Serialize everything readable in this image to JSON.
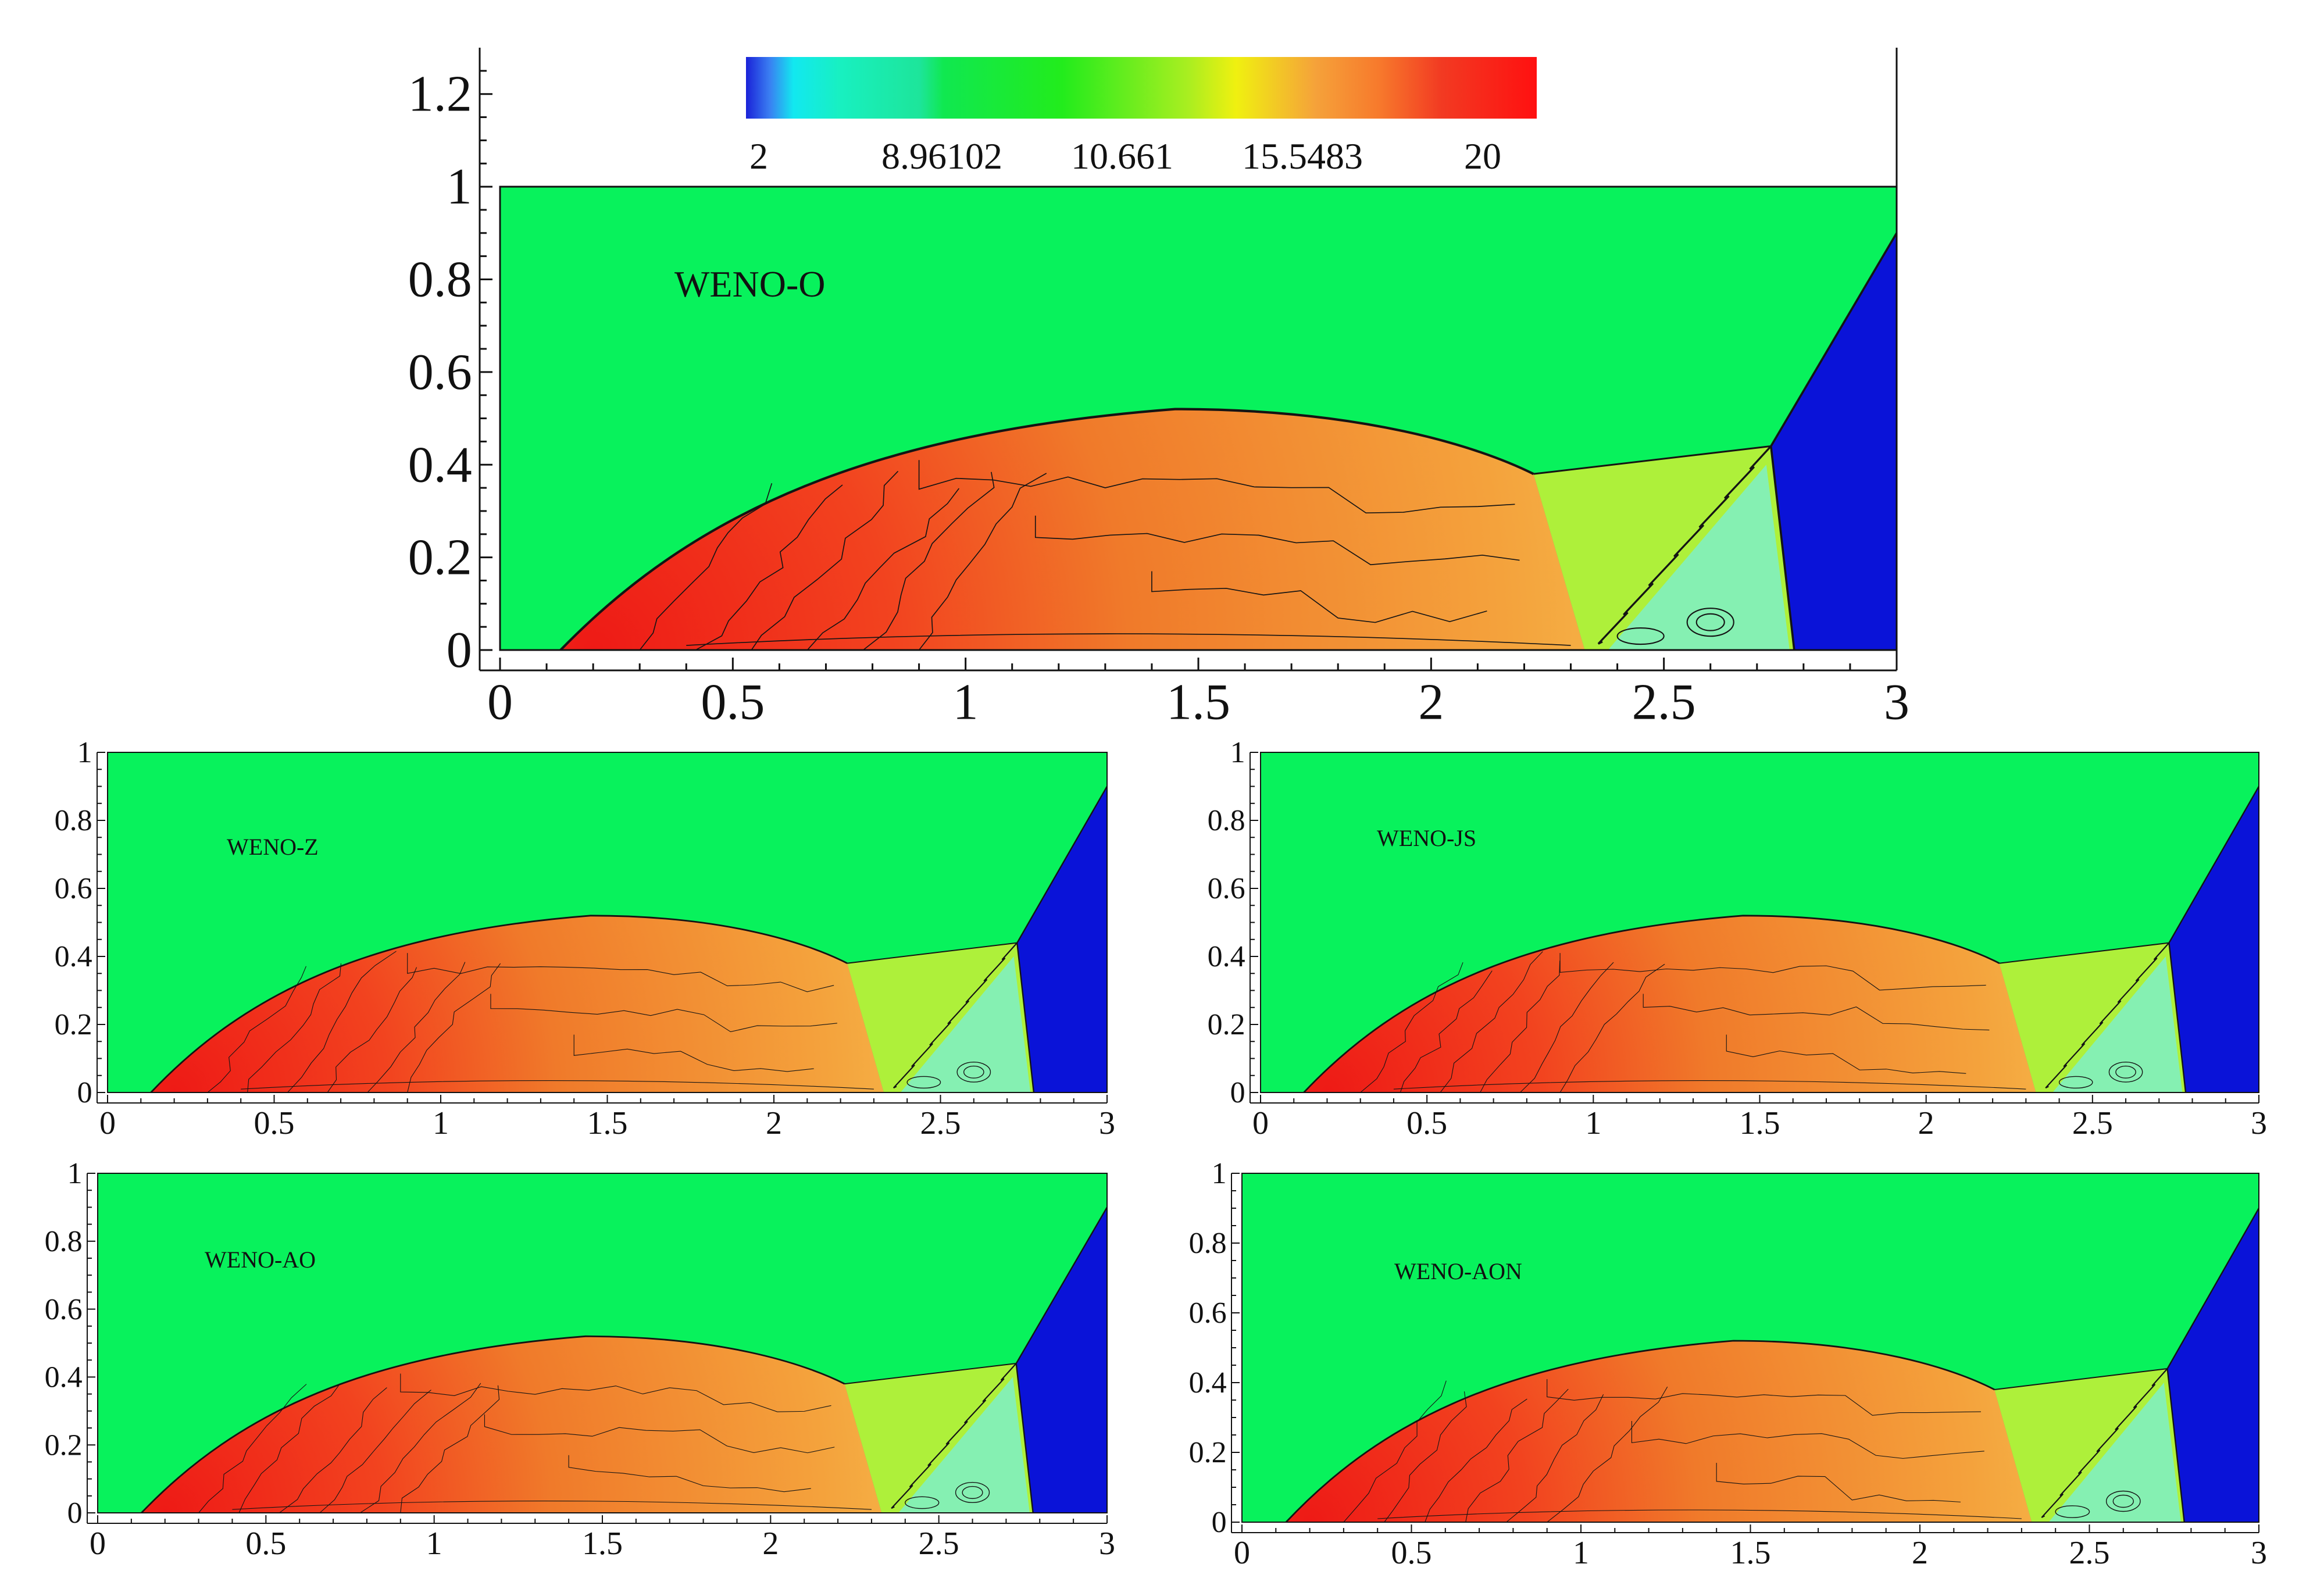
{
  "colorbar": {
    "labels": [
      "2",
      "8.96102",
      "10.661",
      "15.5483",
      "20"
    ],
    "min": 2,
    "max": 20,
    "stops": [
      {
        "t": 0.0,
        "color": "#1a22d8"
      },
      {
        "t": 0.03,
        "color": "#3a7ff2"
      },
      {
        "t": 0.06,
        "color": "#12e8f0"
      },
      {
        "t": 0.12,
        "color": "#18f0c0"
      },
      {
        "t": 0.22,
        "color": "#1de59a"
      },
      {
        "t": 0.25,
        "color": "#10e850"
      },
      {
        "t": 0.4,
        "color": "#22ec1c"
      },
      {
        "t": 0.56,
        "color": "#aaee20"
      },
      {
        "t": 0.62,
        "color": "#f0f010"
      },
      {
        "t": 0.72,
        "color": "#f5a23a"
      },
      {
        "t": 0.8,
        "color": "#f77a2c"
      },
      {
        "t": 0.88,
        "color": "#f23a22"
      },
      {
        "t": 1.0,
        "color": "#ff1010"
      }
    ]
  },
  "colors": {
    "ambient": "#08f25c",
    "inflow": "#0a13d8",
    "hot": "#ee1a16",
    "warm": "#f07a2a",
    "light": "#f4a23c",
    "mach_stem": "#aef03a",
    "pocket": "#7ef0c8",
    "contour": "#141414",
    "frame": "#111111"
  },
  "chart_data": [
    {
      "type": "heatmap",
      "title": "WENO-O",
      "xlim": [
        0,
        3
      ],
      "ylim": [
        0,
        1.3
      ],
      "xticks": [
        "0",
        "0.5",
        "1",
        "1.5",
        "2",
        "2.5",
        "3"
      ],
      "yticks": [
        "0",
        "0.2",
        "0.4",
        "0.6",
        "0.8",
        "1",
        "1.2"
      ],
      "yticks_values": [
        0,
        0.2,
        0.4,
        0.6,
        0.8,
        1,
        1.2
      ],
      "domain": {
        "x": [
          0,
          3
        ],
        "y": [
          0,
          1
        ]
      },
      "features": {
        "bow_shock": [
          [
            0.13,
            0
          ],
          [
            0.5,
            0.33
          ],
          [
            1.0,
            0.47
          ],
          [
            1.45,
            0.52
          ],
          [
            2.0,
            0.46
          ],
          [
            2.22,
            0.38
          ]
        ],
        "triple_point": [
          2.73,
          0.44
        ],
        "incident_shock": [
          [
            2.78,
            0
          ],
          [
            2.73,
            0.44
          ],
          [
            3.0,
            0.9
          ]
        ],
        "vortex_center": [
          2.6,
          0.06
        ]
      }
    },
    {
      "type": "heatmap",
      "title": "WENO-Z",
      "xlim": [
        0,
        3
      ],
      "ylim": [
        0,
        1
      ],
      "xticks": [
        "0",
        "0.5",
        "1",
        "1.5",
        "2",
        "2.5",
        "3"
      ],
      "yticks": [
        "0",
        "0.2",
        "0.4",
        "0.6",
        "0.8",
        "1"
      ],
      "yticks_values": [
        0,
        0.2,
        0.4,
        0.6,
        0.8,
        1
      ],
      "domain": {
        "x": [
          0,
          3
        ],
        "y": [
          0,
          1
        ]
      },
      "features": {
        "bow_shock": [
          [
            0.13,
            0
          ],
          [
            0.5,
            0.33
          ],
          [
            1.0,
            0.47
          ],
          [
            1.45,
            0.52
          ],
          [
            2.0,
            0.46
          ],
          [
            2.22,
            0.38
          ]
        ],
        "triple_point": [
          2.73,
          0.44
        ],
        "incident_shock": [
          [
            2.78,
            0
          ],
          [
            2.73,
            0.44
          ],
          [
            3.0,
            0.9
          ]
        ],
        "vortex_center": [
          2.6,
          0.06
        ]
      }
    },
    {
      "type": "heatmap",
      "title": "WENO-JS",
      "xlim": [
        0,
        3
      ],
      "ylim": [
        0,
        1
      ],
      "xticks": [
        "0",
        "0.5",
        "1",
        "1.5",
        "2",
        "2.5",
        "3"
      ],
      "yticks": [
        "0",
        "0.2",
        "0.4",
        "0.6",
        "0.8",
        "1"
      ],
      "yticks_values": [
        0,
        0.2,
        0.4,
        0.6,
        0.8,
        1
      ],
      "domain": {
        "x": [
          0,
          3
        ],
        "y": [
          0,
          1
        ]
      },
      "features": {
        "bow_shock": [
          [
            0.13,
            0
          ],
          [
            0.5,
            0.33
          ],
          [
            1.0,
            0.47
          ],
          [
            1.45,
            0.52
          ],
          [
            2.0,
            0.46
          ],
          [
            2.22,
            0.38
          ]
        ],
        "triple_point": [
          2.73,
          0.44
        ],
        "incident_shock": [
          [
            2.78,
            0
          ],
          [
            2.73,
            0.44
          ],
          [
            3.0,
            0.9
          ]
        ],
        "vortex_center": [
          2.6,
          0.06
        ]
      }
    },
    {
      "type": "heatmap",
      "title": "WENO-AO",
      "xlim": [
        0,
        3
      ],
      "ylim": [
        0,
        1
      ],
      "xticks": [
        "0",
        "0.5",
        "1",
        "1.5",
        "2",
        "2.5",
        "3"
      ],
      "yticks": [
        "0",
        "0.2",
        "0.4",
        "0.6",
        "0.8",
        "1"
      ],
      "yticks_values": [
        0,
        0.2,
        0.4,
        0.6,
        0.8,
        1
      ],
      "domain": {
        "x": [
          0,
          3
        ],
        "y": [
          0,
          1
        ]
      },
      "features": {
        "bow_shock": [
          [
            0.13,
            0
          ],
          [
            0.5,
            0.33
          ],
          [
            1.0,
            0.47
          ],
          [
            1.45,
            0.52
          ],
          [
            2.0,
            0.46
          ],
          [
            2.22,
            0.38
          ]
        ],
        "triple_point": [
          2.73,
          0.44
        ],
        "incident_shock": [
          [
            2.78,
            0
          ],
          [
            2.73,
            0.44
          ],
          [
            3.0,
            0.9
          ]
        ],
        "vortex_center": [
          2.6,
          0.06
        ]
      }
    },
    {
      "type": "heatmap",
      "title": "WENO-AON",
      "xlim": [
        0,
        3
      ],
      "ylim": [
        0,
        1
      ],
      "xticks": [
        "0",
        "0.5",
        "1",
        "1.5",
        "2",
        "2.5",
        "3"
      ],
      "yticks": [
        "0",
        "0.2",
        "0.4",
        "0.6",
        "0.8",
        "1"
      ],
      "yticks_values": [
        0,
        0.2,
        0.4,
        0.6,
        0.8,
        1
      ],
      "domain": {
        "x": [
          0,
          3
        ],
        "y": [
          0,
          1
        ]
      },
      "features": {
        "bow_shock": [
          [
            0.13,
            0
          ],
          [
            0.5,
            0.33
          ],
          [
            1.0,
            0.47
          ],
          [
            1.45,
            0.52
          ],
          [
            2.0,
            0.46
          ],
          [
            2.22,
            0.38
          ]
        ],
        "triple_point": [
          2.73,
          0.44
        ],
        "incident_shock": [
          [
            2.78,
            0
          ],
          [
            2.73,
            0.44
          ],
          [
            3.0,
            0.9
          ]
        ],
        "vortex_center": [
          2.6,
          0.06
        ]
      }
    }
  ]
}
